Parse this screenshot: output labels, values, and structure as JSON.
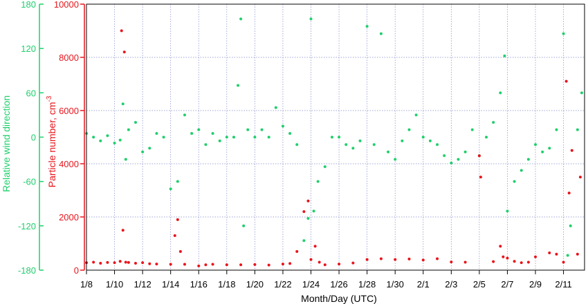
{
  "chart_data": {
    "type": "scatter",
    "title": "",
    "xlabel": "Month/Day (UTC)",
    "ylabel_left": "Relative wind direction",
    "ylabel_right": "Particle number, cm",
    "ylabel_right_superscript": "-3",
    "x_tick_labels": [
      "1/8",
      "1/10",
      "1/12",
      "1/14",
      "1/16",
      "1/18",
      "1/20",
      "1/22",
      "1/24",
      "1/26",
      "1/28",
      "1/30",
      "2/1",
      "2/3",
      "2/5",
      "2/7",
      "2/9",
      "2/11"
    ],
    "x_range_days": [
      0,
      35.5
    ],
    "left_axis": {
      "ylim": [
        -180,
        180
      ],
      "ticks": [
        "-180",
        "-120",
        "-60",
        "0",
        "60",
        "120",
        "180"
      ],
      "color": "#1fcf6c"
    },
    "right_axis": {
      "ylim": [
        0,
        10000
      ],
      "ticks": [
        "0",
        "2000",
        "4000",
        "6000",
        "8000",
        "10000"
      ],
      "color": "#e8141b"
    },
    "grid": true,
    "series": [
      {
        "name": "Relative wind direction",
        "color": "#1fcf6c",
        "axis": "left",
        "points": [
          [
            0.0,
            5
          ],
          [
            0.5,
            0
          ],
          [
            1.0,
            -5
          ],
          [
            1.5,
            2
          ],
          [
            2.0,
            -8
          ],
          [
            2.4,
            -4
          ],
          [
            2.6,
            45
          ],
          [
            2.8,
            -30
          ],
          [
            3.0,
            10
          ],
          [
            3.5,
            20
          ],
          [
            4.0,
            -20
          ],
          [
            4.5,
            -15
          ],
          [
            5.0,
            5
          ],
          [
            5.5,
            0
          ],
          [
            6.0,
            -70
          ],
          [
            6.5,
            -60
          ],
          [
            7.0,
            30
          ],
          [
            7.5,
            5
          ],
          [
            8.0,
            10
          ],
          [
            8.5,
            -10
          ],
          [
            9.0,
            5
          ],
          [
            9.5,
            -5
          ],
          [
            10.0,
            0
          ],
          [
            10.5,
            0
          ],
          [
            10.8,
            70
          ],
          [
            11.0,
            160
          ],
          [
            11.2,
            -120
          ],
          [
            11.5,
            10
          ],
          [
            12.0,
            0
          ],
          [
            12.5,
            10
          ],
          [
            13.0,
            0
          ],
          [
            13.5,
            40
          ],
          [
            14.0,
            15
          ],
          [
            14.5,
            5
          ],
          [
            15.0,
            -10
          ],
          [
            15.5,
            -140
          ],
          [
            15.8,
            -110
          ],
          [
            16.0,
            160
          ],
          [
            16.2,
            -100
          ],
          [
            16.5,
            -60
          ],
          [
            17.0,
            -40
          ],
          [
            17.5,
            0
          ],
          [
            18.0,
            0
          ],
          [
            18.5,
            -10
          ],
          [
            19.0,
            -15
          ],
          [
            19.5,
            -5
          ],
          [
            20.0,
            150
          ],
          [
            20.5,
            -10
          ],
          [
            21.0,
            140
          ],
          [
            21.5,
            -20
          ],
          [
            22.0,
            -30
          ],
          [
            22.5,
            -5
          ],
          [
            23.0,
            10
          ],
          [
            23.5,
            30
          ],
          [
            24.0,
            0
          ],
          [
            24.5,
            -5
          ],
          [
            25.0,
            -10
          ],
          [
            25.5,
            -25
          ],
          [
            26.0,
            -35
          ],
          [
            26.5,
            -30
          ],
          [
            27.0,
            -20
          ],
          [
            27.5,
            10
          ],
          [
            28.0,
            -25
          ],
          [
            28.5,
            0
          ],
          [
            29.0,
            20
          ],
          [
            29.5,
            60
          ],
          [
            29.8,
            110
          ],
          [
            30.0,
            -100
          ],
          [
            30.5,
            -60
          ],
          [
            31.0,
            -45
          ],
          [
            31.5,
            -30
          ],
          [
            32.0,
            -10
          ],
          [
            32.5,
            -20
          ],
          [
            33.0,
            -15
          ],
          [
            33.5,
            10
          ],
          [
            34.0,
            140
          ],
          [
            34.3,
            -160
          ],
          [
            34.5,
            -120
          ],
          [
            35.0,
            10
          ],
          [
            35.3,
            60
          ]
        ]
      },
      {
        "name": "Particle number",
        "color": "#e8141b",
        "axis": "right",
        "points": [
          [
            0.0,
            280
          ],
          [
            0.5,
            300
          ],
          [
            1.0,
            260
          ],
          [
            1.5,
            290
          ],
          [
            2.0,
            280
          ],
          [
            2.4,
            330
          ],
          [
            2.5,
            9000
          ],
          [
            2.6,
            1500
          ],
          [
            2.7,
            8200
          ],
          [
            2.8,
            300
          ],
          [
            3.0,
            290
          ],
          [
            3.5,
            260
          ],
          [
            4.0,
            280
          ],
          [
            4.5,
            240
          ],
          [
            5.0,
            230
          ],
          [
            6.0,
            220
          ],
          [
            6.3,
            1300
          ],
          [
            6.5,
            1900
          ],
          [
            6.7,
            700
          ],
          [
            7.0,
            220
          ],
          [
            8.0,
            160
          ],
          [
            8.5,
            200
          ],
          [
            9.0,
            220
          ],
          [
            10.0,
            200
          ],
          [
            11.0,
            200
          ],
          [
            12.0,
            210
          ],
          [
            13.0,
            190
          ],
          [
            14.0,
            230
          ],
          [
            14.5,
            250
          ],
          [
            15.0,
            700
          ],
          [
            15.5,
            2200
          ],
          [
            15.8,
            2600
          ],
          [
            16.0,
            400
          ],
          [
            16.3,
            900
          ],
          [
            16.6,
            300
          ],
          [
            17.0,
            200
          ],
          [
            18.0,
            230
          ],
          [
            19.0,
            270
          ],
          [
            20.0,
            400
          ],
          [
            21.0,
            430
          ],
          [
            22.0,
            400
          ],
          [
            23.0,
            420
          ],
          [
            24.0,
            380
          ],
          [
            25.0,
            430
          ],
          [
            26.0,
            310
          ],
          [
            27.0,
            300
          ],
          [
            28.0,
            4300
          ],
          [
            28.1,
            3500
          ],
          [
            29.0,
            320
          ],
          [
            29.5,
            900
          ],
          [
            29.7,
            500
          ],
          [
            30.0,
            450
          ],
          [
            30.5,
            330
          ],
          [
            31.0,
            280
          ],
          [
            31.5,
            300
          ],
          [
            32.0,
            500
          ],
          [
            33.0,
            650
          ],
          [
            33.5,
            600
          ],
          [
            34.0,
            300
          ],
          [
            34.2,
            7100
          ],
          [
            34.4,
            2900
          ],
          [
            34.6,
            4500
          ],
          [
            35.0,
            600
          ],
          [
            35.2,
            3500
          ]
        ]
      }
    ]
  }
}
